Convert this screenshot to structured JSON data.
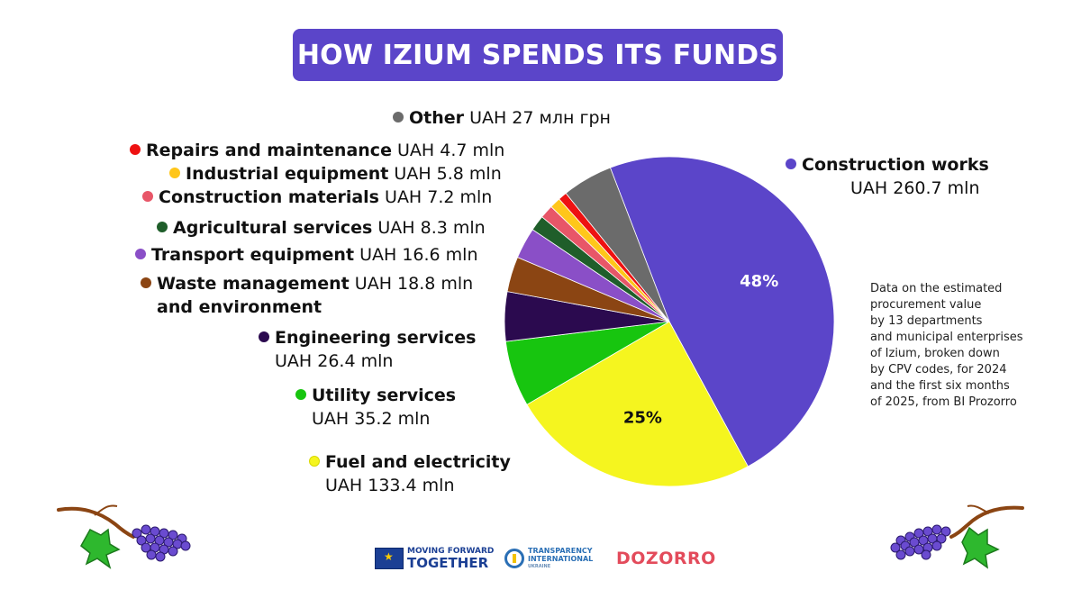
{
  "title": "HOW IZIUM SPENDS ITS FUNDS",
  "colors": {
    "title_bg": "#5b45c9",
    "title_text": "#ffffff"
  },
  "note": {
    "lines": [
      "Data on the estimated",
      "procurement value",
      "by 13 departments",
      "and municipal enterprises",
      "of Izium, broken down",
      "by CPV codes, for 2024",
      "and the first six months",
      "of 2025, from BI Prozorro"
    ]
  },
  "chart_data": {
    "type": "pie",
    "title": "HOW IZIUM SPENDS ITS FUNDS",
    "unit": "UAH mln",
    "slices": [
      {
        "name": "Construction works",
        "value": 260.7,
        "value_label": "UAH 260.7 mln",
        "color": "#5b45c9",
        "data_label": "48%"
      },
      {
        "name": "Fuel and electricity",
        "value": 133.4,
        "value_label": "UAH 133.4 mln",
        "color": "#f5f51f",
        "data_label": "25%"
      },
      {
        "name": "Utility services",
        "value": 35.2,
        "value_label": "UAH 35.2 mln",
        "color": "#17c50f",
        "data_label": ""
      },
      {
        "name": "Engineering services",
        "value": 26.4,
        "value_label": "UAH 26.4 mln",
        "color": "#2b0a4f",
        "data_label": ""
      },
      {
        "name": "Waste management and environment",
        "value": 18.8,
        "value_label": "UAH 18.8 mln",
        "color": "#8b4513",
        "data_label": ""
      },
      {
        "name": "Transport equipment",
        "value": 16.6,
        "value_label": "UAH 16.6 mln",
        "color": "#8a4fc7",
        "data_label": ""
      },
      {
        "name": "Agricultural services",
        "value": 8.3,
        "value_label": "UAH 8.3 mln",
        "color": "#1f5e2a",
        "data_label": ""
      },
      {
        "name": "Construction materials",
        "value": 7.2,
        "value_label": "UAH 7.2 mln",
        "color": "#e85668",
        "data_label": ""
      },
      {
        "name": "Industrial equipment",
        "value": 5.8,
        "value_label": "UAH 5.8 mln",
        "color": "#ffc61a",
        "data_label": ""
      },
      {
        "name": "Repairs and maintenance",
        "value": 4.7,
        "value_label": "UAH 4.7 mln",
        "color": "#ee1111",
        "data_label": ""
      },
      {
        "name": "Other",
        "value": 27,
        "value_label": "UAH 27 млн грн",
        "color": "#6b6b6b",
        "data_label": ""
      }
    ]
  },
  "legend_text": {
    "construction_works": {
      "name": "Construction works",
      "value": "UAH 260.7 mln"
    },
    "fuel": {
      "name": "Fuel and electricity",
      "value": "UAH 133.4 mln"
    },
    "utility": {
      "name": "Utility services",
      "value": "UAH 35.2 mln"
    },
    "engineering": {
      "name": "Engineering services",
      "value": "UAH 26.4 mln"
    },
    "waste": {
      "name": "Waste management",
      "name2": "and environment",
      "value": "UAH 18.8 mln"
    },
    "transport": {
      "name": "Transport equipment",
      "value": "UAH 16.6 mln"
    },
    "agri": {
      "name": "Agricultural services",
      "value": "UAH 8.3 mln"
    },
    "materials": {
      "name": "Construction materials",
      "value": "UAH 7.2 mln"
    },
    "industrial": {
      "name": "Industrial equipment",
      "value": "UAH 5.8 mln"
    },
    "repairs": {
      "name": "Repairs and maintenance",
      "value": "UAH 4.7 mln"
    },
    "other": {
      "name": "Other",
      "value": "UAH 27 млн грн"
    }
  },
  "logos": {
    "eu_line1": "MOVING FORWARD",
    "eu_line2": "TOGETHER",
    "ti_line1": "TRANSPARENCY",
    "ti_line2": "INTERNATIONAL",
    "ti_line3": "UKRAINE",
    "dozorro": "DOZORRO"
  }
}
